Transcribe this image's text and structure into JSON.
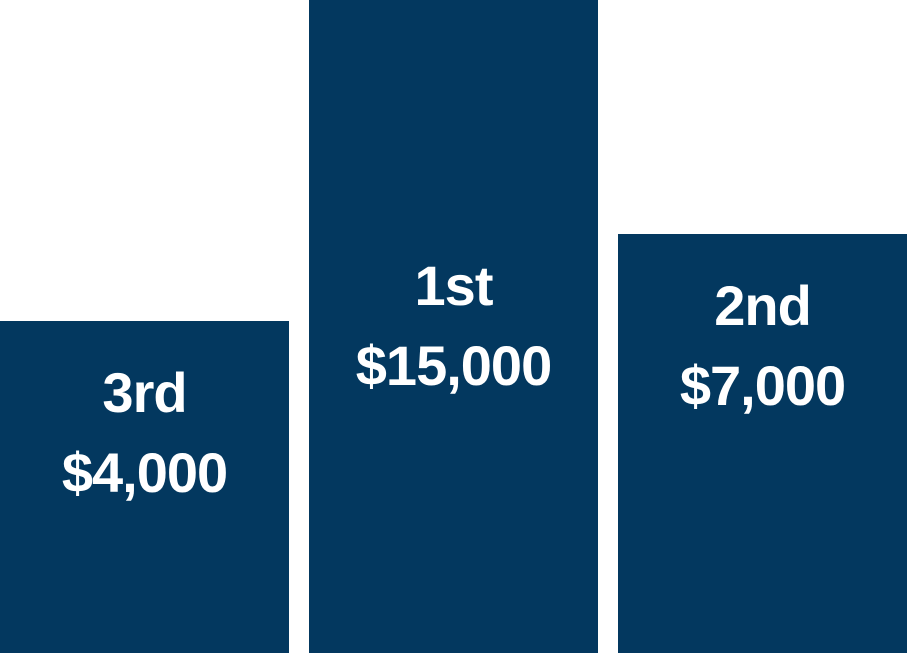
{
  "colors": {
    "bar": "#03385f",
    "text": "#ffffff",
    "background": "#ffffff"
  },
  "chart_data": {
    "type": "bar",
    "categories": [
      "3rd",
      "1st",
      "2nd"
    ],
    "values": [
      4000,
      15000,
      7000
    ],
    "value_labels": [
      "$4,000",
      "$15,000",
      "$7,000"
    ],
    "title": "",
    "xlabel": "",
    "ylabel": "",
    "ylim": [
      0,
      15000
    ],
    "grid": false,
    "legend": "none"
  }
}
